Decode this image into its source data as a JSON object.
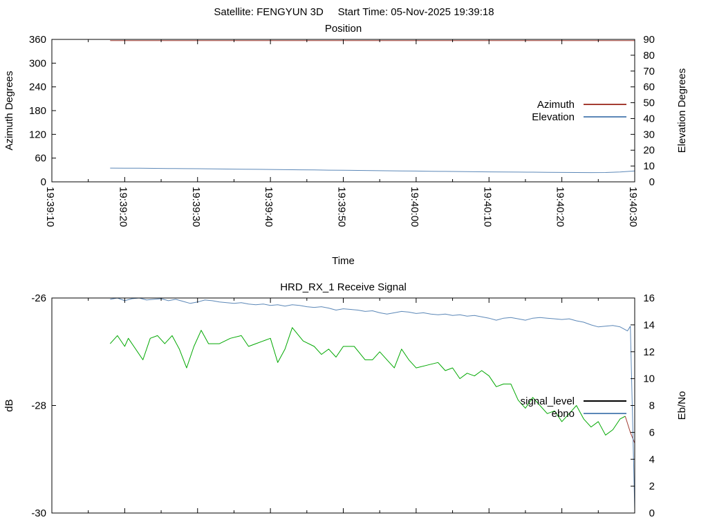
{
  "header": {
    "title": "Satellite: FENGYUN 3D     Start Time: 05-Nov-2025 19:39:18"
  },
  "colors": {
    "axis": "#000000",
    "azimuth": "#a43c32",
    "elevation": "#5b87b7",
    "signal_level": "#00a800",
    "signal_tail": "#a03a30",
    "ebno": "#5b87b7",
    "legend_signal_sample": "#000000"
  },
  "chart_data": [
    {
      "type": "line",
      "title": "Position",
      "xlabel": "Time",
      "ylabel_left": "Azimuth Degrees",
      "ylabel_right": "Elevation Degrees",
      "x_tick_labels": [
        "19:39:10",
        "19:39:20",
        "19:39:30",
        "19:39:40",
        "19:39:50",
        "19:40:00",
        "19:40:10",
        "19:40:20",
        "19:40:30"
      ],
      "x_tick_seconds": [
        0,
        10,
        20,
        30,
        40,
        50,
        60,
        70,
        80
      ],
      "xlim_seconds": [
        0,
        80
      ],
      "ylim_left": [
        0,
        360
      ],
      "yticks_left": [
        0,
        60,
        120,
        180,
        240,
        300,
        360
      ],
      "ylim_right": [
        0,
        90
      ],
      "yticks_right": [
        0,
        10,
        20,
        30,
        40,
        50,
        60,
        70,
        80,
        90
      ],
      "legend": [
        {
          "label": "Azimuth",
          "color": "#a43c32"
        },
        {
          "label": "Elevation",
          "color": "#5b87b7"
        }
      ],
      "series": [
        {
          "name": "Azimuth",
          "axis": "left",
          "color": "#a43c32",
          "points": [
            [
              8,
              356.8
            ],
            [
              40,
              356.9
            ],
            [
              80,
              356.9
            ]
          ]
        },
        {
          "name": "Elevation",
          "axis": "right",
          "color": "#5b87b7",
          "points": [
            [
              8,
              8.7
            ],
            [
              10,
              8.65
            ],
            [
              12,
              8.6
            ],
            [
              14,
              8.5
            ],
            [
              16,
              8.45
            ],
            [
              18,
              8.35
            ],
            [
              20,
              8.3
            ],
            [
              22,
              8.2
            ],
            [
              24,
              8.1
            ],
            [
              26,
              8.0
            ],
            [
              28,
              7.9
            ],
            [
              30,
              7.8
            ],
            [
              32,
              7.7
            ],
            [
              34,
              7.6
            ],
            [
              36,
              7.5
            ],
            [
              38,
              7.4
            ],
            [
              40,
              7.3
            ],
            [
              42,
              7.2
            ],
            [
              44,
              7.1
            ],
            [
              46,
              7.0
            ],
            [
              48,
              6.9
            ],
            [
              50,
              6.8
            ],
            [
              52,
              6.7
            ],
            [
              54,
              6.6
            ],
            [
              56,
              6.5
            ],
            [
              58,
              6.4
            ],
            [
              60,
              6.3
            ],
            [
              62,
              6.2
            ],
            [
              64,
              6.15
            ],
            [
              66,
              6.1
            ],
            [
              68,
              6.0
            ],
            [
              70,
              5.95
            ],
            [
              72,
              5.9
            ],
            [
              74,
              5.85
            ],
            [
              76,
              5.9
            ],
            [
              78,
              6.2
            ],
            [
              80,
              6.9
            ]
          ]
        }
      ]
    },
    {
      "type": "line",
      "title": "HRD_RX_1 Receive Signal",
      "xlabel": "",
      "ylabel_left": "dB",
      "ylabel_right": "Eb/No",
      "x_tick_labels": [],
      "x_tick_seconds": [
        0,
        10,
        20,
        30,
        40,
        50,
        60,
        70,
        80
      ],
      "xlim_seconds": [
        0,
        80
      ],
      "ylim_left": [
        -30,
        -26
      ],
      "yticks_left": [
        -26,
        -28,
        -30
      ],
      "ylim_right": [
        0,
        16
      ],
      "yticks_right": [
        0,
        2,
        4,
        6,
        8,
        10,
        12,
        14,
        16
      ],
      "legend": [
        {
          "label": "signal_level",
          "color": "#000000"
        },
        {
          "label": "ebno",
          "color": "#5b87b7"
        }
      ],
      "series": [
        {
          "name": "signal_level",
          "axis": "left",
          "color": "#00a800",
          "points": [
            [
              8,
              -26.85
            ],
            [
              9,
              -26.7
            ],
            [
              10,
              -26.9
            ],
            [
              10.5,
              -26.75
            ],
            [
              11.5,
              -26.95
            ],
            [
              12.5,
              -27.15
            ],
            [
              13.5,
              -26.75
            ],
            [
              14.5,
              -26.7
            ],
            [
              15.5,
              -26.85
            ],
            [
              16.5,
              -26.7
            ],
            [
              17.5,
              -26.95
            ],
            [
              18.5,
              -27.3
            ],
            [
              19.5,
              -26.9
            ],
            [
              20.5,
              -26.6
            ],
            [
              21.5,
              -26.85
            ],
            [
              23,
              -26.85
            ],
            [
              24.5,
              -26.75
            ],
            [
              26,
              -26.7
            ],
            [
              27,
              -26.9
            ],
            [
              28,
              -26.85
            ],
            [
              29,
              -26.8
            ],
            [
              30,
              -26.75
            ],
            [
              31,
              -27.2
            ],
            [
              32,
              -26.95
            ],
            [
              33,
              -26.55
            ],
            [
              34.5,
              -26.8
            ],
            [
              36,
              -26.9
            ],
            [
              37,
              -27.05
            ],
            [
              38,
              -26.95
            ],
            [
              39,
              -27.1
            ],
            [
              40,
              -26.9
            ],
            [
              41.5,
              -26.9
            ],
            [
              43,
              -27.15
            ],
            [
              44,
              -27.15
            ],
            [
              45,
              -27.0
            ],
            [
              46,
              -27.15
            ],
            [
              47,
              -27.3
            ],
            [
              48,
              -26.95
            ],
            [
              49,
              -27.15
            ],
            [
              50,
              -27.3
            ],
            [
              51.5,
              -27.25
            ],
            [
              53,
              -27.2
            ],
            [
              54,
              -27.35
            ],
            [
              55,
              -27.3
            ],
            [
              56,
              -27.5
            ],
            [
              57,
              -27.4
            ],
            [
              58,
              -27.45
            ],
            [
              59,
              -27.35
            ],
            [
              60,
              -27.45
            ],
            [
              61,
              -27.65
            ],
            [
              62,
              -27.6
            ],
            [
              63,
              -27.6
            ],
            [
              64,
              -27.9
            ],
            [
              65,
              -28.05
            ],
            [
              66,
              -27.85
            ],
            [
              67,
              -28.0
            ],
            [
              68,
              -28.15
            ],
            [
              69,
              -28.1
            ],
            [
              70,
              -28.3
            ],
            [
              71,
              -28.15
            ],
            [
              72,
              -28.0
            ],
            [
              73,
              -28.25
            ],
            [
              74,
              -28.4
            ],
            [
              75,
              -28.3
            ],
            [
              76,
              -28.55
            ],
            [
              77,
              -28.45
            ],
            [
              78,
              -28.25
            ],
            [
              78.7,
              -28.2
            ]
          ]
        },
        {
          "name": "signal_level_tail",
          "axis": "left",
          "color": "#a03a30",
          "points": [
            [
              78.7,
              -28.2
            ],
            [
              79.4,
              -28.5
            ],
            [
              80,
              -28.7
            ]
          ]
        },
        {
          "name": "ebno",
          "axis": "right",
          "color": "#5b87b7",
          "points": [
            [
              8,
              15.9
            ],
            [
              9,
              16.0
            ],
            [
              10,
              15.8
            ],
            [
              11,
              15.95
            ],
            [
              12,
              16.0
            ],
            [
              13,
              15.85
            ],
            [
              14,
              15.9
            ],
            [
              15,
              15.95
            ],
            [
              16,
              15.8
            ],
            [
              17,
              15.9
            ],
            [
              18,
              15.75
            ],
            [
              19,
              15.6
            ],
            [
              20,
              15.7
            ],
            [
              21,
              15.85
            ],
            [
              22,
              15.8
            ],
            [
              23,
              15.7
            ],
            [
              24,
              15.65
            ],
            [
              25,
              15.6
            ],
            [
              26,
              15.65
            ],
            [
              27,
              15.55
            ],
            [
              28,
              15.5
            ],
            [
              29,
              15.55
            ],
            [
              30,
              15.45
            ],
            [
              31,
              15.5
            ],
            [
              32,
              15.4
            ],
            [
              33,
              15.5
            ],
            [
              34,
              15.45
            ],
            [
              35,
              15.35
            ],
            [
              36,
              15.3
            ],
            [
              37,
              15.35
            ],
            [
              38,
              15.25
            ],
            [
              39,
              15.1
            ],
            [
              40,
              15.2
            ],
            [
              41,
              15.15
            ],
            [
              42,
              15.1
            ],
            [
              43,
              15.0
            ],
            [
              44,
              15.05
            ],
            [
              45,
              14.9
            ],
            [
              46,
              14.8
            ],
            [
              47,
              14.9
            ],
            [
              48,
              15.0
            ],
            [
              49,
              14.95
            ],
            [
              50,
              14.85
            ],
            [
              51,
              14.9
            ],
            [
              52,
              14.8
            ],
            [
              53,
              14.75
            ],
            [
              54,
              14.8
            ],
            [
              55,
              14.7
            ],
            [
              56,
              14.75
            ],
            [
              57,
              14.65
            ],
            [
              58,
              14.7
            ],
            [
              59,
              14.6
            ],
            [
              60,
              14.5
            ],
            [
              61,
              14.35
            ],
            [
              62,
              14.5
            ],
            [
              63,
              14.55
            ],
            [
              64,
              14.45
            ],
            [
              65,
              14.35
            ],
            [
              66,
              14.5
            ],
            [
              67,
              14.55
            ],
            [
              68,
              14.5
            ],
            [
              69,
              14.45
            ],
            [
              70,
              14.4
            ],
            [
              71,
              14.45
            ],
            [
              72,
              14.3
            ],
            [
              73,
              14.2
            ],
            [
              74,
              14.0
            ],
            [
              75,
              13.85
            ],
            [
              76,
              13.9
            ],
            [
              77,
              13.95
            ],
            [
              78,
              13.85
            ],
            [
              79,
              13.55
            ],
            [
              79.4,
              13.9
            ],
            [
              80,
              0.3
            ]
          ]
        }
      ]
    }
  ]
}
